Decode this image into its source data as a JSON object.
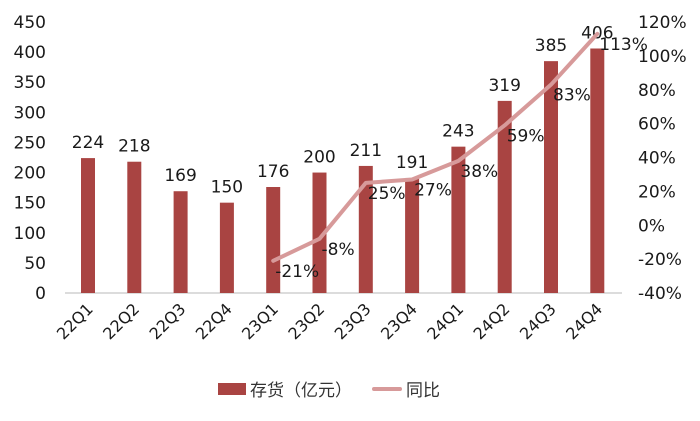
{
  "chart_data": {
    "type": "bar",
    "title": "",
    "categories": [
      "22Q1",
      "22Q2",
      "22Q3",
      "22Q4",
      "23Q1",
      "23Q2",
      "23Q3",
      "23Q4",
      "24Q1",
      "24Q2",
      "24Q3",
      "24Q4"
    ],
    "series": [
      {
        "name": "存货（亿元）",
        "type": "bar",
        "axis": "left",
        "color": "#A94442",
        "values": [
          224,
          218,
          169,
          150,
          176,
          200,
          211,
          191,
          243,
          319,
          385,
          406
        ]
      },
      {
        "name": "同比",
        "type": "line",
        "axis": "right",
        "color": "#D79A9A",
        "values": [
          null,
          null,
          null,
          null,
          -21,
          -8,
          25,
          27,
          38,
          59,
          83,
          113
        ],
        "labels": [
          "",
          "",
          "",
          "",
          "-21%",
          "-8%",
          "25%",
          "27%",
          "38%",
          "59%",
          "83%",
          "113%"
        ]
      }
    ],
    "xlabel": "",
    "ylabel": "",
    "ylim": [
      0,
      450
    ],
    "yticks": [
      0,
      50,
      100,
      150,
      200,
      250,
      300,
      350,
      400,
      450
    ],
    "y2lim": [
      -40,
      120
    ],
    "y2ticks": [
      "-40%",
      "-20%",
      "0%",
      "20%",
      "40%",
      "60%",
      "80%",
      "100%",
      "120%"
    ],
    "grid": false,
    "legend_position": "bottom"
  },
  "legend": {
    "bar_label": "存货（亿元）",
    "line_label": "同比"
  }
}
